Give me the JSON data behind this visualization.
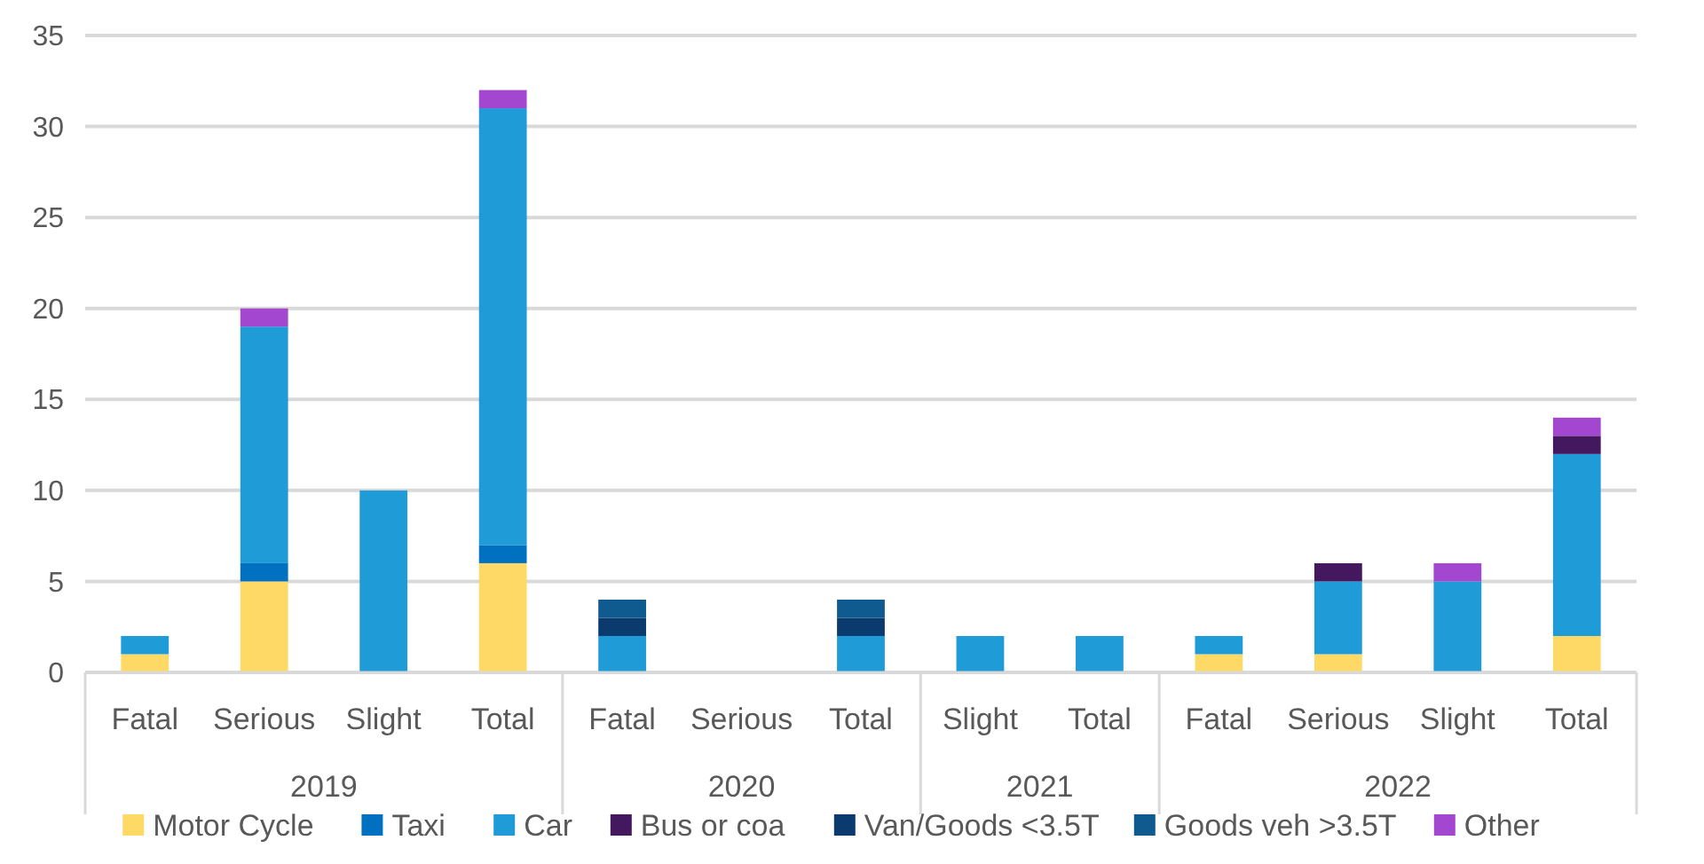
{
  "chart_data": {
    "type": "bar",
    "stacked": true,
    "categories": [
      "Fatal",
      "Serious",
      "Slight",
      "Total",
      "Fatal",
      "Serious",
      "Total",
      "Slight",
      "Total",
      "Fatal",
      "Serious",
      "Slight",
      "Total"
    ],
    "series": [
      {
        "name": "Motor Cycle",
        "color": "#ffd966",
        "values": [
          1,
          5,
          null,
          6,
          null,
          null,
          null,
          null,
          null,
          1,
          1,
          null,
          2
        ]
      },
      {
        "name": "Taxi",
        "color": "#0070c0",
        "values": [
          null,
          1,
          null,
          1,
          null,
          null,
          null,
          null,
          null,
          null,
          null,
          null,
          null
        ]
      },
      {
        "name": "Car",
        "color": "#1f9bd7",
        "values": [
          1,
          13,
          10,
          24,
          2,
          null,
          2,
          2,
          2,
          1,
          4,
          5,
          10
        ]
      },
      {
        "name": "Bus or coa",
        "color": "#44185e",
        "values": [
          null,
          null,
          null,
          null,
          null,
          null,
          null,
          null,
          null,
          null,
          1,
          null,
          1
        ]
      },
      {
        "name": "Van/Goods <3.5T",
        "color": "#0b3a6e",
        "values": [
          null,
          null,
          null,
          null,
          1,
          null,
          1,
          null,
          null,
          null,
          null,
          null,
          null
        ]
      },
      {
        "name": "Goods veh >3.5T",
        "color": "#0f5a8f",
        "values": [
          null,
          null,
          null,
          null,
          1,
          null,
          1,
          null,
          null,
          null,
          null,
          null,
          null
        ]
      },
      {
        "name": "Other",
        "color": "#a347d0",
        "values": [
          null,
          1,
          null,
          1,
          null,
          null,
          null,
          null,
          null,
          null,
          null,
          1,
          1
        ]
      }
    ],
    "ylim": [
      0,
      35
    ],
    "yticks": [
      0,
      5,
      10,
      15,
      20,
      25,
      30,
      35
    ],
    "grid": "y",
    "legend": "bottom",
    "annotations": [
      "2019",
      "2020",
      "2021",
      "2022"
    ]
  }
}
